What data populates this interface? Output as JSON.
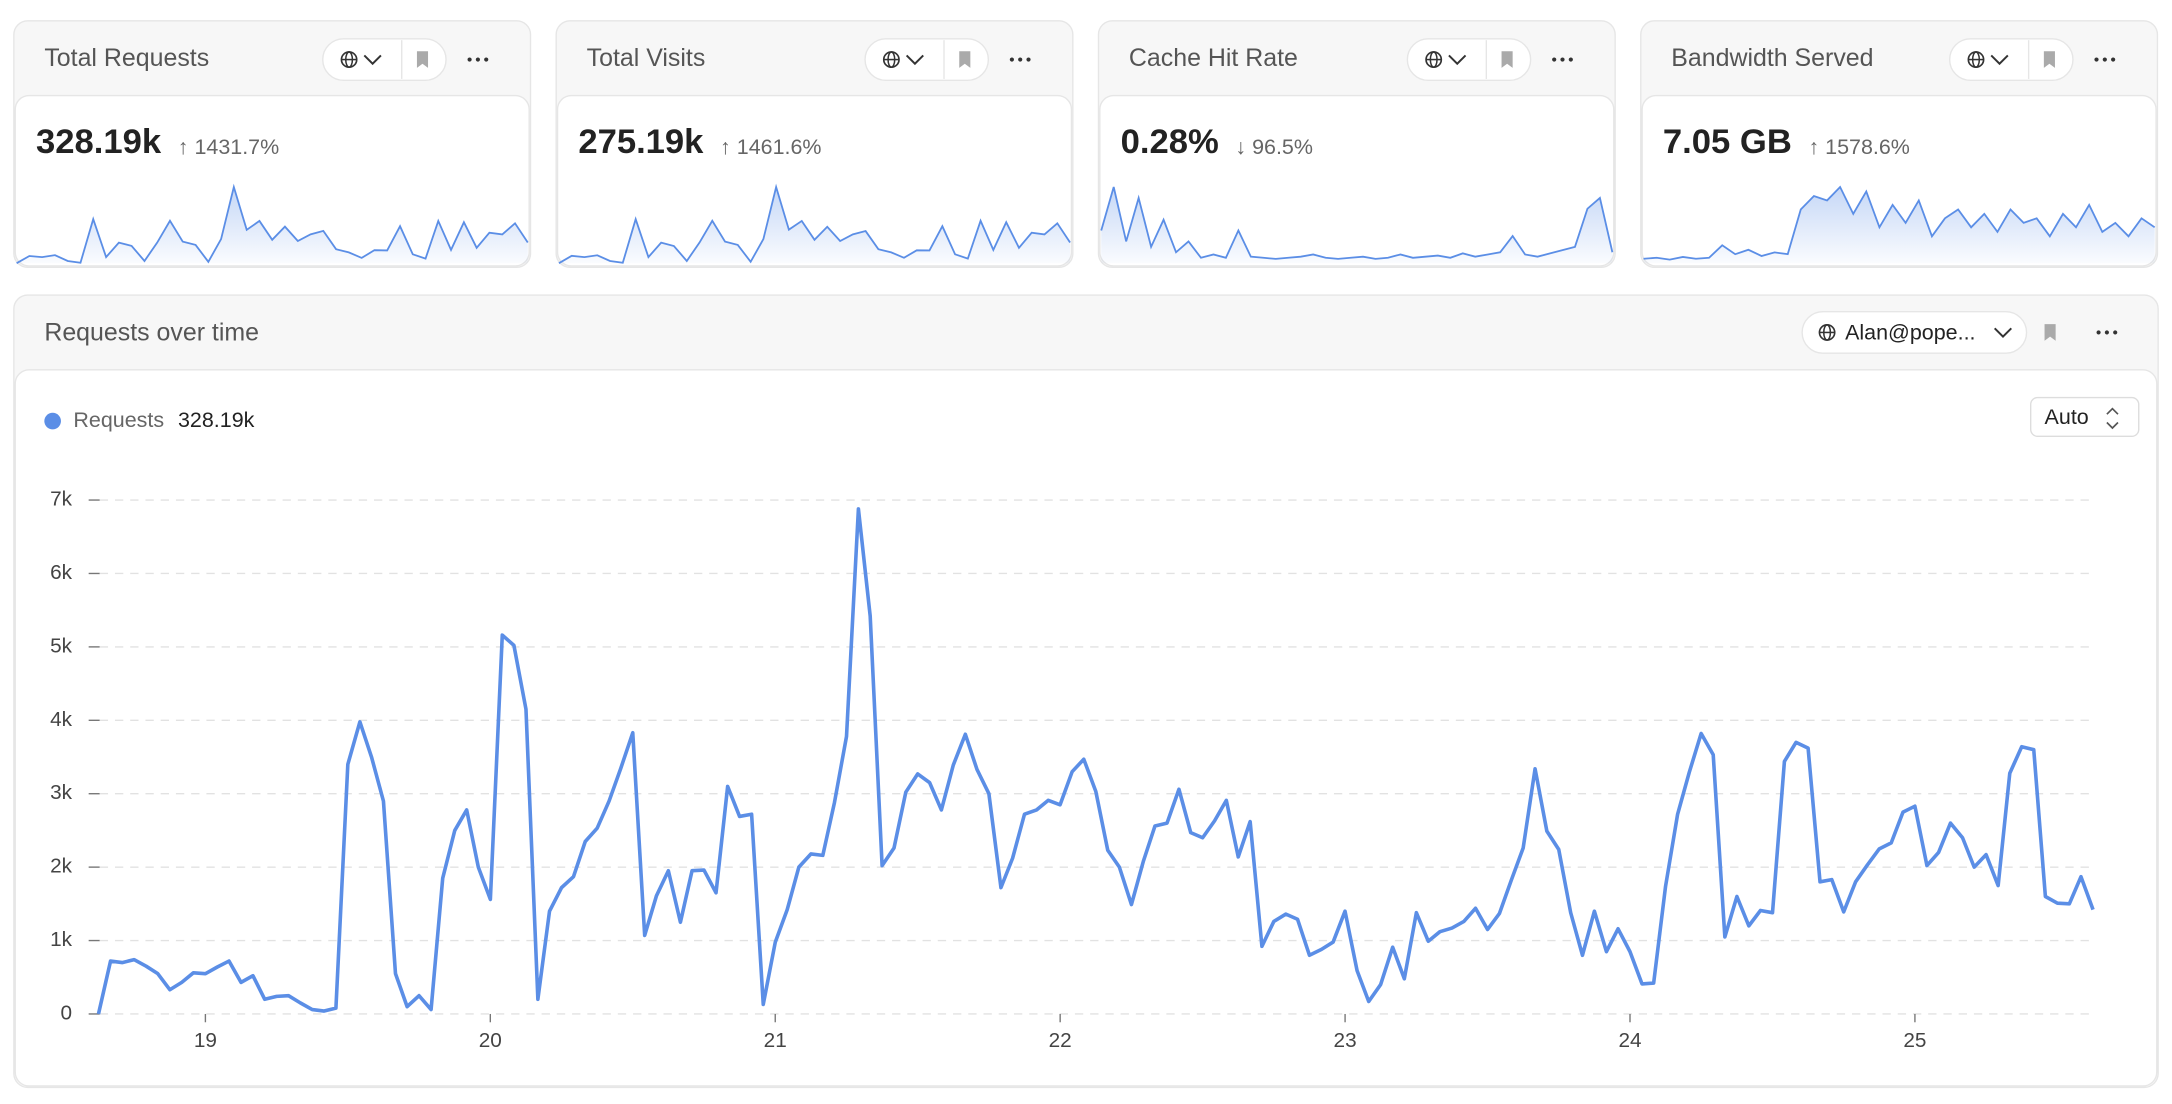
{
  "cards": [
    {
      "title": "Total Requests",
      "value": "328.19k",
      "change": "↑ 1431.7%",
      "sparkline": [
        0,
        650,
        550,
        720,
        200,
        40,
        3980,
        550,
        1850,
        1560,
        200,
        1870,
        3830,
        1950,
        1650,
        130,
        2180,
        6880,
        3020,
        3810,
        2120,
        3300,
        2000,
        2600,
        2910,
        1260,
        980,
        480,
        1170,
        1150,
        3340,
        800,
        410,
        3820,
        1200,
        3700,
        1390,
        2750,
        2600,
        3600,
        1870
      ]
    },
    {
      "title": "Total Visits",
      "value": "275.19k",
      "change": "↑ 1461.6%",
      "sparkline": [
        0,
        560,
        470,
        610,
        170,
        30,
        3380,
        470,
        1570,
        1320,
        170,
        1590,
        3250,
        1660,
        1400,
        110,
        1850,
        5850,
        2570,
        3240,
        1800,
        2800,
        1700,
        2210,
        2470,
        1070,
        830,
        410,
        990,
        980,
        2840,
        680,
        350,
        3250,
        1020,
        3150,
        1180,
        2340,
        2210,
        3060,
        1590
      ]
    },
    {
      "title": "Cache Hit Rate",
      "value": "0.28%",
      "change": "↓ 96.5%",
      "sparkline": [
        30,
        70,
        20,
        60,
        15,
        40,
        10,
        20,
        5,
        8,
        5,
        30,
        6,
        5,
        4,
        5,
        6,
        8,
        5,
        4,
        5,
        6,
        4,
        5,
        8,
        5,
        6,
        7,
        5,
        9,
        6,
        8,
        10,
        25,
        8,
        6,
        9,
        12,
        15,
        50,
        60,
        10
      ]
    },
    {
      "title": "Bandwidth Served",
      "value": "7.05 GB",
      "change": "↑ 1578.6%",
      "sparkline": [
        5,
        6,
        4,
        7,
        5,
        6,
        20,
        10,
        15,
        8,
        12,
        10,
        60,
        75,
        70,
        85,
        55,
        80,
        40,
        65,
        45,
        70,
        30,
        50,
        60,
        40,
        55,
        35,
        60,
        45,
        50,
        30,
        55,
        40,
        65,
        35,
        45,
        30,
        50,
        40
      ]
    }
  ],
  "chart_data": {
    "type": "line",
    "title": "Requests over time",
    "selector": "Alan@pope...",
    "granularity": "Auto",
    "total": "328.19k",
    "x": [
      18.625,
      18.667,
      18.708,
      18.75,
      18.792,
      18.833,
      18.875,
      18.917,
      18.958,
      19,
      19.042,
      19.083,
      19.125,
      19.167,
      19.208,
      19.25,
      19.292,
      19.333,
      19.375,
      19.417,
      19.458,
      19.5,
      19.542,
      19.583,
      19.625,
      19.667,
      19.708,
      19.75,
      19.792,
      19.833,
      19.875,
      19.917,
      19.958,
      20,
      20.042,
      20.083,
      20.125,
      20.167,
      20.208,
      20.25,
      20.292,
      20.333,
      20.375,
      20.417,
      20.458,
      20.5,
      20.542,
      20.583,
      20.625,
      20.667,
      20.708,
      20.75,
      20.792,
      20.833,
      20.875,
      20.917,
      20.958,
      21,
      21.042,
      21.083,
      21.125,
      21.167,
      21.208,
      21.25,
      21.292,
      21.333,
      21.375,
      21.417,
      21.458,
      21.5,
      21.542,
      21.583,
      21.625,
      21.667,
      21.708,
      21.75,
      21.792,
      21.833,
      21.875,
      21.917,
      21.958,
      22,
      22.042,
      22.083,
      22.125,
      22.167,
      22.208,
      22.25,
      22.292,
      22.333,
      22.375,
      22.417,
      22.458,
      22.5,
      22.542,
      22.583,
      22.625,
      22.667,
      22.708,
      22.75,
      22.792,
      22.833,
      22.875,
      22.917,
      22.958,
      23,
      23.042,
      23.083,
      23.125,
      23.167,
      23.208,
      23.25,
      23.292,
      23.333,
      23.375,
      23.417,
      23.458,
      23.5,
      23.542,
      23.583,
      23.625,
      23.667,
      23.708,
      23.75,
      23.792,
      23.833,
      23.875,
      23.917,
      23.958,
      24,
      24.042,
      24.083,
      24.125,
      24.167,
      24.208,
      24.25,
      24.292,
      24.333,
      24.375,
      24.417,
      24.458,
      24.5,
      24.542,
      24.583,
      24.625,
      24.667,
      24.708,
      24.75,
      24.792,
      24.833,
      24.875,
      24.917,
      24.958,
      25,
      25.042,
      25.083,
      25.125,
      25.167,
      25.208,
      25.25,
      25.292,
      25.333,
      25.375,
      25.417,
      25.458,
      25.5,
      25.542,
      25.583,
      25.625
    ],
    "series": [
      {
        "name": "Requests",
        "color": "#5b8ee6",
        "values": [
          0,
          720,
          700,
          740,
          650,
          550,
          330,
          430,
          560,
          550,
          640,
          720,
          430,
          520,
          200,
          240,
          250,
          150,
          60,
          40,
          80,
          3400,
          3980,
          3500,
          2900,
          550,
          100,
          250,
          60,
          1850,
          2500,
          2780,
          2000,
          1560,
          5160,
          5020,
          4150,
          200,
          1400,
          1720,
          1870,
          2350,
          2530,
          2900,
          3350,
          3830,
          1070,
          1610,
          1950,
          1250,
          1950,
          1960,
          1650,
          3100,
          2690,
          2720,
          130,
          980,
          1420,
          2000,
          2180,
          2160,
          2880,
          3780,
          6880,
          5420,
          2020,
          2260,
          3020,
          3270,
          3150,
          2780,
          3390,
          3810,
          3330,
          3000,
          1720,
          2120,
          2720,
          2780,
          2910,
          2850,
          3300,
          3470,
          3030,
          2230,
          2000,
          1490,
          2080,
          2560,
          2600,
          3060,
          2470,
          2400,
          2630,
          2910,
          2140,
          2620,
          920,
          1260,
          1360,
          1290,
          800,
          880,
          980,
          1400,
          590,
          170,
          400,
          910,
          480,
          1380,
          990,
          1120,
          1170,
          1260,
          1440,
          1150,
          1370,
          1820,
          2260,
          3340,
          2490,
          2240,
          1380,
          800,
          1400,
          850,
          1160,
          850,
          410,
          420,
          1740,
          2720,
          3290,
          3820,
          3530,
          1050,
          1600,
          1200,
          1410,
          1380,
          3440,
          3700,
          3620,
          1800,
          1830,
          1390,
          1800,
          2030,
          2250,
          2330,
          2750,
          2830,
          2020,
          2200,
          2600,
          2400,
          2000,
          2170,
          1750,
          3280,
          3640,
          3600,
          1600,
          1510,
          1500,
          1870,
          1420
        ]
      }
    ],
    "xlim": [
      18.6,
      25.63
    ],
    "ylim": [
      0,
      7000
    ],
    "xticks": [
      19,
      20,
      21,
      22,
      23,
      24,
      25
    ],
    "yticks": [
      0,
      {
        "value": 1000,
        "label": "1k"
      },
      {
        "value": 2000,
        "label": "2k"
      },
      {
        "value": 3000,
        "label": "3k"
      },
      {
        "value": 4000,
        "label": "4k"
      },
      {
        "value": 5000,
        "label": "5k"
      },
      {
        "value": 6000,
        "label": "6k"
      },
      {
        "value": 7000,
        "label": "7k"
      }
    ],
    "grid": true
  }
}
